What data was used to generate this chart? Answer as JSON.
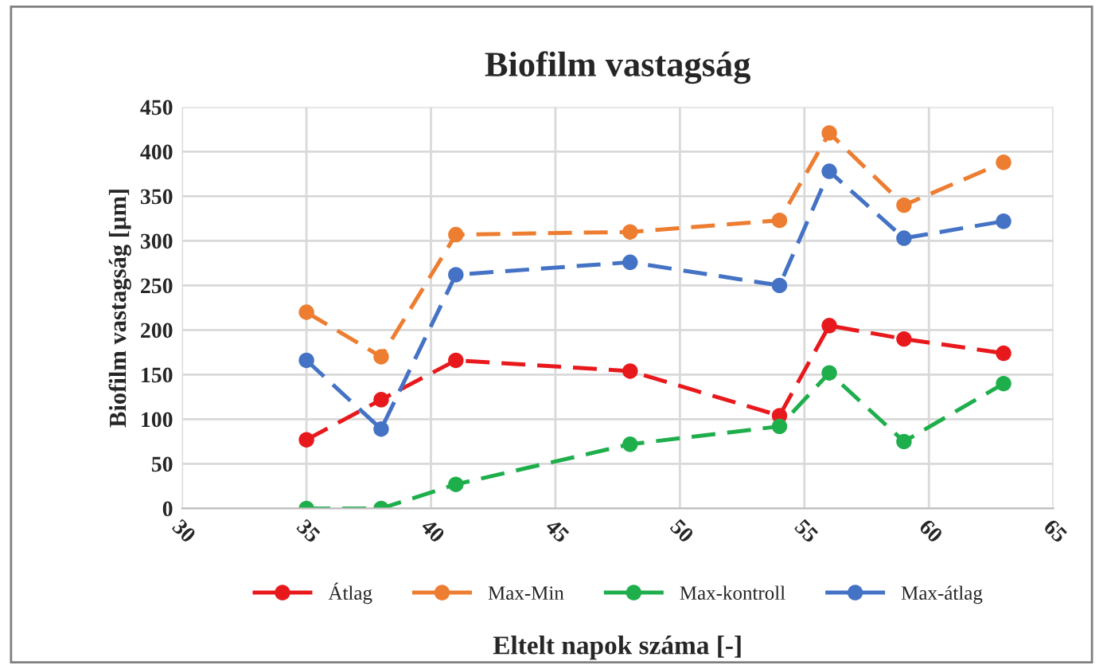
{
  "chart_data": {
    "type": "line",
    "title": "Biofilm vastagság",
    "xlabel": "Eltelt napok száma [-]",
    "ylabel": "Biofilm vastagság [µm]",
    "x": [
      35,
      38,
      41,
      48,
      54,
      56,
      59,
      63
    ],
    "series": [
      {
        "name": "Átlag",
        "color": "#e8191c",
        "values": [
          77,
          122,
          166,
          154,
          104,
          205,
          190,
          174
        ]
      },
      {
        "name": "Max-Min",
        "color": "#ed7d31",
        "values": [
          220,
          170,
          307,
          310,
          323,
          421,
          340,
          388
        ]
      },
      {
        "name": "Max-kontroll",
        "color": "#1fae4c",
        "values": [
          0,
          0,
          27,
          72,
          92,
          152,
          75,
          140
        ]
      },
      {
        "name": "Max-átlag",
        "color": "#4472c4",
        "values": [
          166,
          89,
          262,
          276,
          250,
          378,
          303,
          322
        ]
      }
    ],
    "xlim": [
      30,
      65
    ],
    "xticks": [
      30,
      35,
      40,
      45,
      50,
      55,
      60,
      65
    ],
    "ylim": [
      0,
      450
    ],
    "yticks": [
      0,
      50,
      100,
      150,
      200,
      250,
      300,
      350,
      400,
      450
    ],
    "grid": true,
    "legend": "bottom",
    "marker": "circle",
    "line_style": "dashed"
  }
}
